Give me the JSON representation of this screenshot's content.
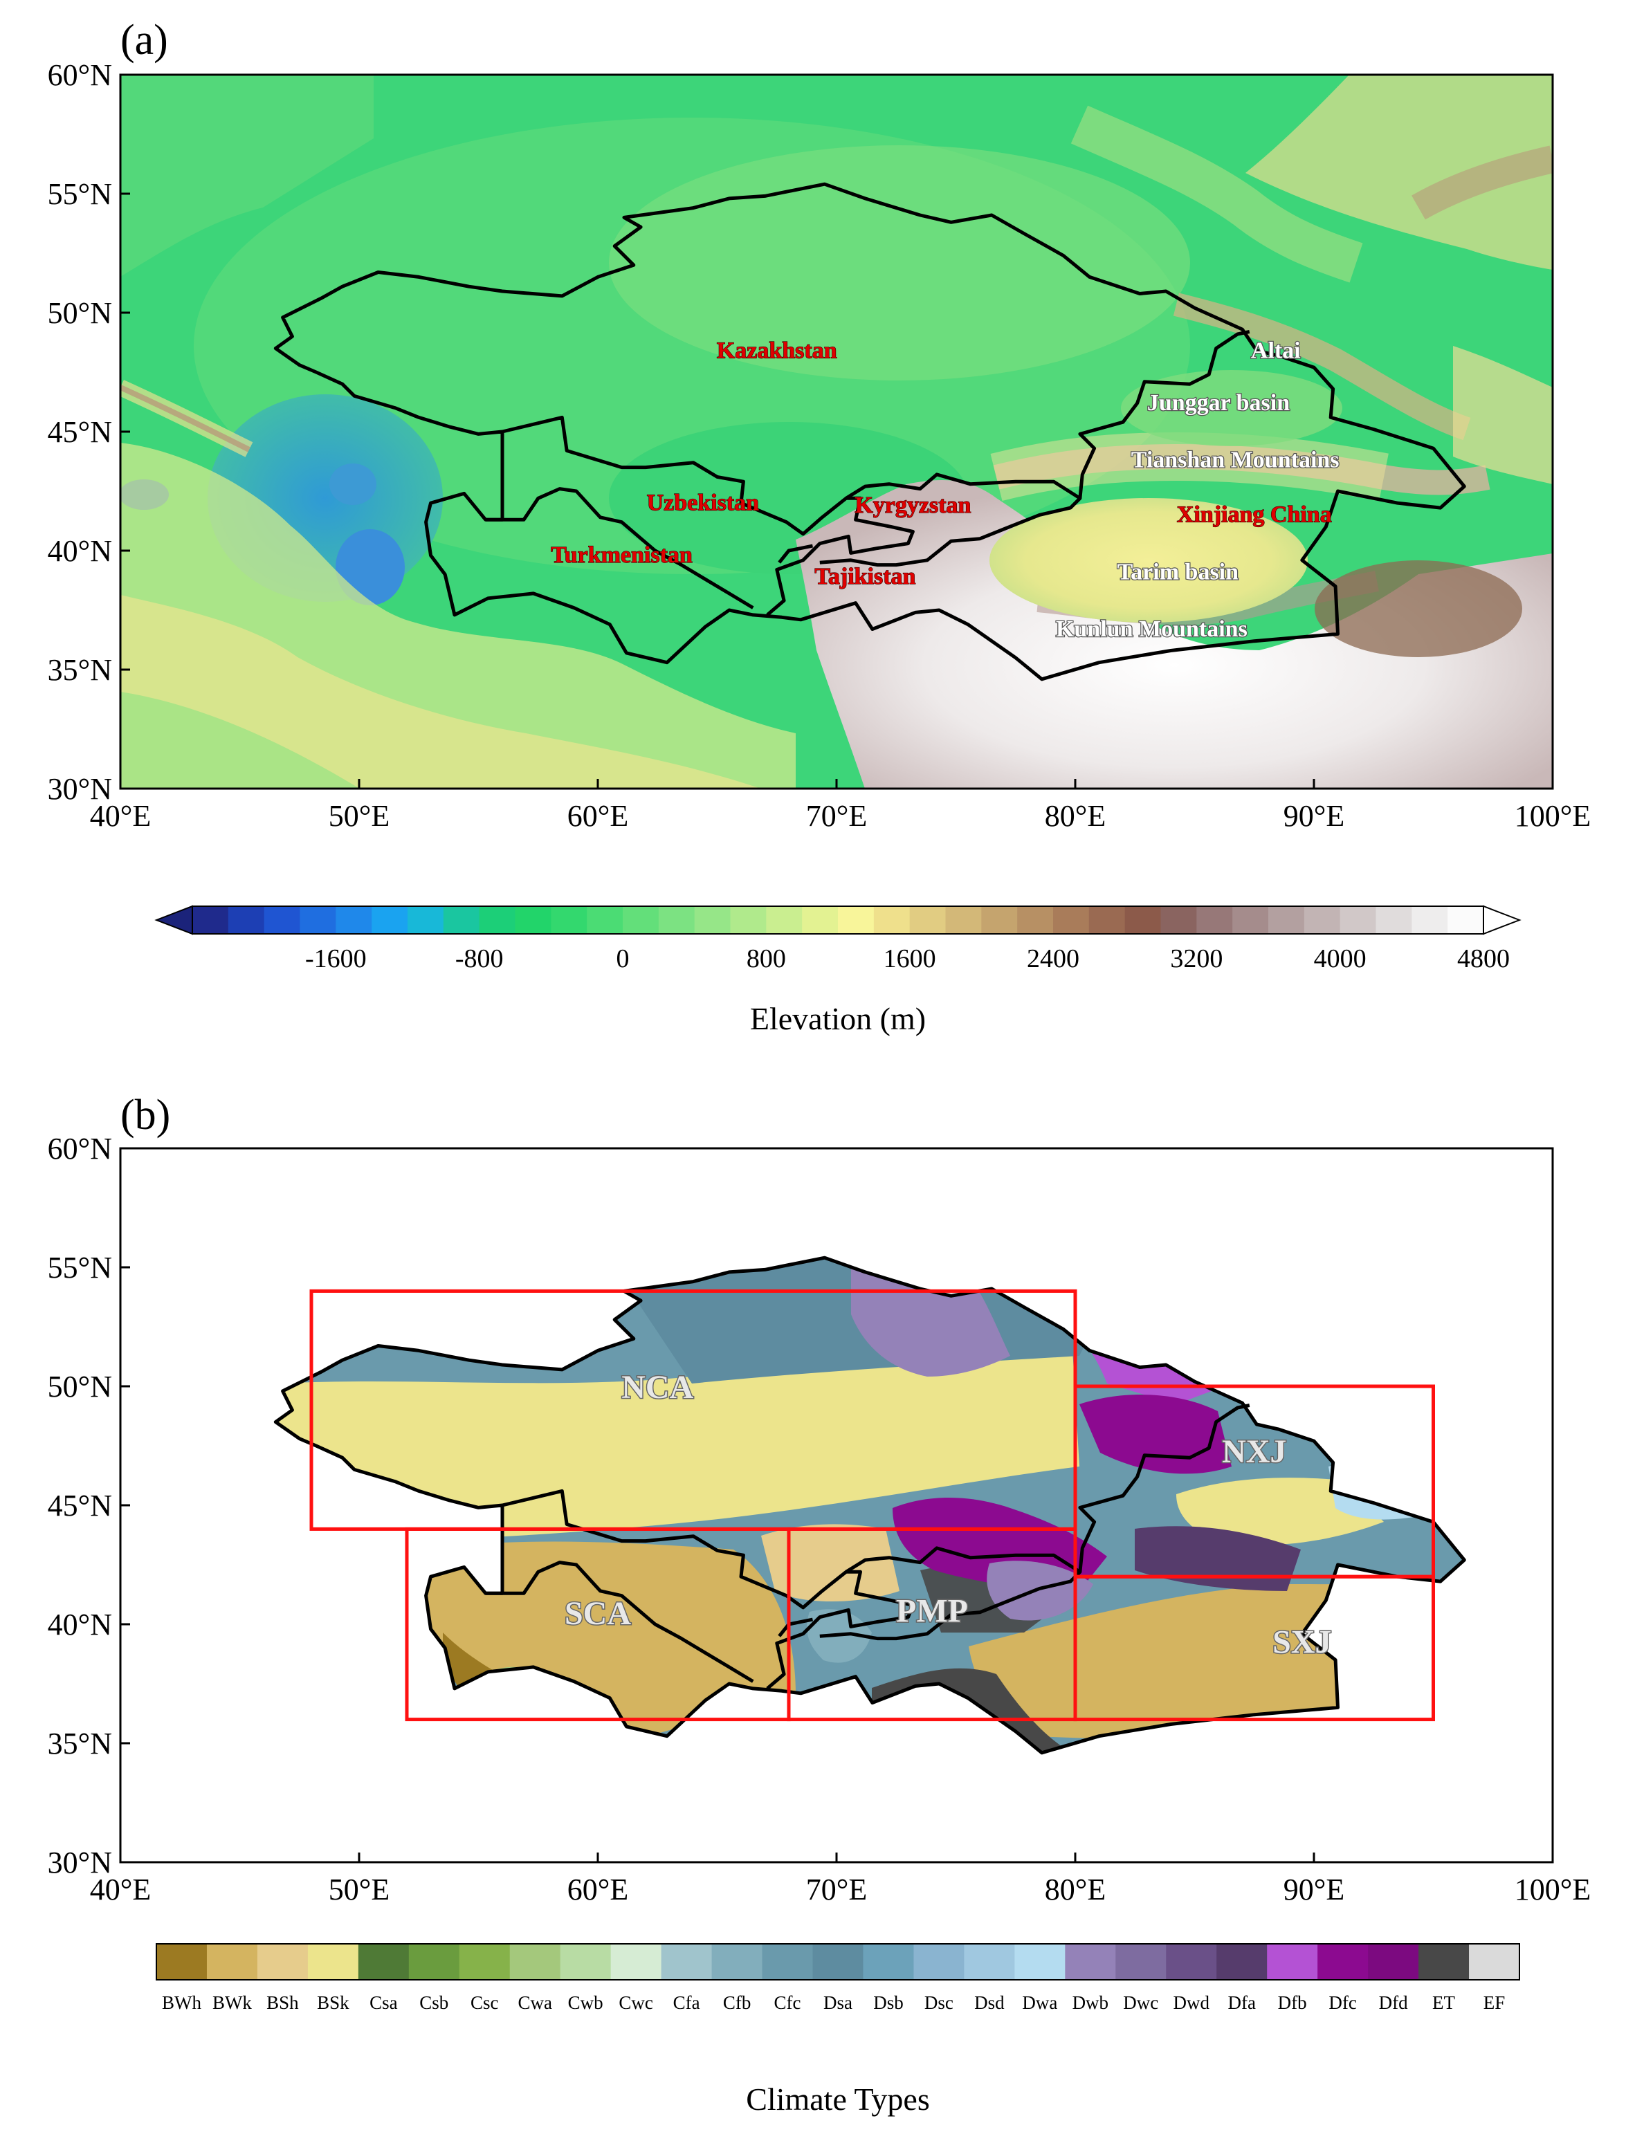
{
  "panel_a": {
    "label": "(a)",
    "lat_ticks": [
      "60°N",
      "55°N",
      "50°N",
      "45°N",
      "40°N",
      "35°N",
      "30°N"
    ],
    "lon_ticks": [
      "40°E",
      "50°E",
      "60°E",
      "70°E",
      "80°E",
      "90°E",
      "100°E"
    ],
    "extent": {
      "lon": [
        40,
        100
      ],
      "lat": [
        30,
        60
      ]
    },
    "countries": [
      {
        "name": "Kazakhstan",
        "lon": 67.5,
        "lat": 48.1
      },
      {
        "name": "Uzbekistan",
        "lon": 64.4,
        "lat": 41.7
      },
      {
        "name": "Kyrgyzstan",
        "lon": 73.2,
        "lat": 41.6
      },
      {
        "name": "Turkmenistan",
        "lon": 61.0,
        "lat": 39.5
      },
      {
        "name": "Tajikistan",
        "lon": 71.2,
        "lat": 38.6
      },
      {
        "name": "Xinjiang China",
        "lon": 87.5,
        "lat": 41.2
      }
    ],
    "features": [
      {
        "name": "Altai",
        "lon": 88.4,
        "lat": 48.1
      },
      {
        "name": "Junggar basin",
        "lon": 86.0,
        "lat": 45.9
      },
      {
        "name": "Tianshan Mountains",
        "lon": 86.7,
        "lat": 43.5
      },
      {
        "name": "Tarim basin",
        "lon": 84.3,
        "lat": 38.8
      },
      {
        "name": "Kunlun Mountains",
        "lon": 83.2,
        "lat": 36.4
      }
    ],
    "colorbar": {
      "title": "Elevation (m)",
      "ticks": [
        "-1600",
        "-800",
        "0",
        "800",
        "1600",
        "2400",
        "3200",
        "4000",
        "4800"
      ],
      "colors": [
        "#1f2a8c",
        "#1d3fb4",
        "#1f55d2",
        "#1f6ee0",
        "#1f88ea",
        "#1aa3f0",
        "#18b8d8",
        "#1ac6a0",
        "#1ccf78",
        "#22d46a",
        "#33d86e",
        "#4bdc74",
        "#63df7a",
        "#7ce282",
        "#96e688",
        "#b0ea8c",
        "#caee90",
        "#e3f292",
        "#f8f59a",
        "#efe08c",
        "#e1cc82",
        "#d3b878",
        "#c5a46e",
        "#b79064",
        "#a97c5a",
        "#9a6a52",
        "#8c5a4a",
        "#8a6460",
        "#977878",
        "#a58c8c",
        "#b3a0a0",
        "#c2b4b4",
        "#d1c8c8",
        "#e0dcdc",
        "#eeeded",
        "#fbfbfb"
      ]
    }
  },
  "panel_b": {
    "label": "(b)",
    "lat_ticks": [
      "60°N",
      "55°N",
      "50°N",
      "45°N",
      "40°N",
      "35°N",
      "30°N"
    ],
    "lon_ticks": [
      "40°E",
      "50°E",
      "60°E",
      "70°E",
      "80°E",
      "90°E",
      "100°E"
    ],
    "regions": [
      {
        "name": "NCA",
        "lon_range": [
          48,
          80
        ],
        "lat_range": [
          44,
          54
        ],
        "label_lon": 62.5,
        "label_lat": 49.5
      },
      {
        "name": "SCA",
        "lon_range": [
          52,
          68
        ],
        "lat_range": [
          36,
          44
        ],
        "label_lon": 60.0,
        "label_lat": 40.0
      },
      {
        "name": "PMP",
        "lon_range": [
          68,
          80
        ],
        "lat_range": [
          36,
          44
        ],
        "label_lon": 74.0,
        "label_lat": 40.1
      },
      {
        "name": "NXJ",
        "lon_range": [
          80,
          95
        ],
        "lat_range": [
          42,
          50
        ],
        "label_lon": 87.5,
        "label_lat": 46.8
      },
      {
        "name": "SXJ",
        "lon_range": [
          80,
          95
        ],
        "lat_range": [
          36,
          42
        ],
        "label_lon": 89.5,
        "label_lat": 38.8
      }
    ],
    "colorbar": {
      "title": "Climate Types",
      "types": [
        "BWh",
        "BWk",
        "BSh",
        "BSk",
        "Csa",
        "Csb",
        "Csc",
        "Cwa",
        "Cwb",
        "Cwc",
        "Cfa",
        "Cfb",
        "Cfc",
        "Dsa",
        "Dsb",
        "Dsc",
        "Dsd",
        "Dwa",
        "Dwb",
        "Dwc",
        "Dwd",
        "Dfa",
        "Dfb",
        "Dfc",
        "Dfd",
        "ET",
        "EF"
      ],
      "colors": [
        "#9c7a22",
        "#d4b460",
        "#e6cc8c",
        "#ece48c",
        "#4f7a36",
        "#6a9c3e",
        "#86b24a",
        "#a4c87c",
        "#b8dca4",
        "#d6ecd4",
        "#a0c4cc",
        "#82aebc",
        "#6a9aac",
        "#5e8ca0",
        "#6ca2ba",
        "#8ab4d0",
        "#a0c8e0",
        "#b4dcf0",
        "#9482b8",
        "#7e6ca0",
        "#6a5088",
        "#563c6c",
        "#b452d4",
        "#8c0a90",
        "#7c0a80",
        "#484848",
        "#dadada"
      ]
    }
  }
}
